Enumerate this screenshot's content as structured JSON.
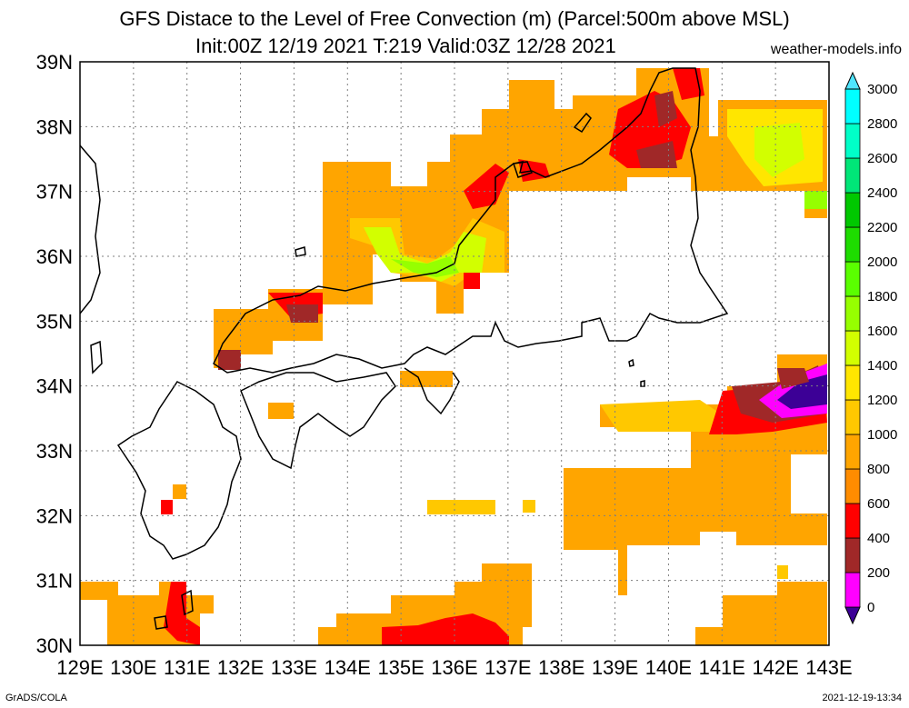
{
  "header": {
    "title_line1": "GFS Distace to the Level of Free Convection (m) (Parcel:500m above MSL)",
    "title_line2": "Init:00Z 12/19 2021 T:219 Valid:03Z 12/28 2021",
    "site": "weather-models.info"
  },
  "footer": {
    "left": "GrADS/COLA",
    "right": "2021-12-19-13:34"
  },
  "map": {
    "lon_range": [
      129,
      143
    ],
    "lat_range": [
      30,
      39
    ],
    "lon_ticks": [
      "129E",
      "130E",
      "131E",
      "132E",
      "133E",
      "134E",
      "135E",
      "136E",
      "137E",
      "138E",
      "139E",
      "140E",
      "141E",
      "142E",
      "143E"
    ],
    "lat_ticks": [
      "30N",
      "31N",
      "32N",
      "33N",
      "34N",
      "35N",
      "36N",
      "37N",
      "38N",
      "39N"
    ],
    "grid": true
  },
  "colorbar": {
    "labels": [
      "0",
      "200",
      "400",
      "600",
      "800",
      "1000",
      "1200",
      "1400",
      "1600",
      "1800",
      "2000",
      "2200",
      "2400",
      "2600",
      "2800",
      "3000"
    ],
    "colors": [
      "#3c0096",
      "#ff00ff",
      "#a02828",
      "#ff0000",
      "#ff8c00",
      "#ffa500",
      "#ffc800",
      "#ffe600",
      "#d2ff00",
      "#96ff00",
      "#5aff00",
      "#1edc00",
      "#00c800",
      "#00e678",
      "#00ffc8",
      "#00ffff",
      "#50e6ff"
    ]
  }
}
